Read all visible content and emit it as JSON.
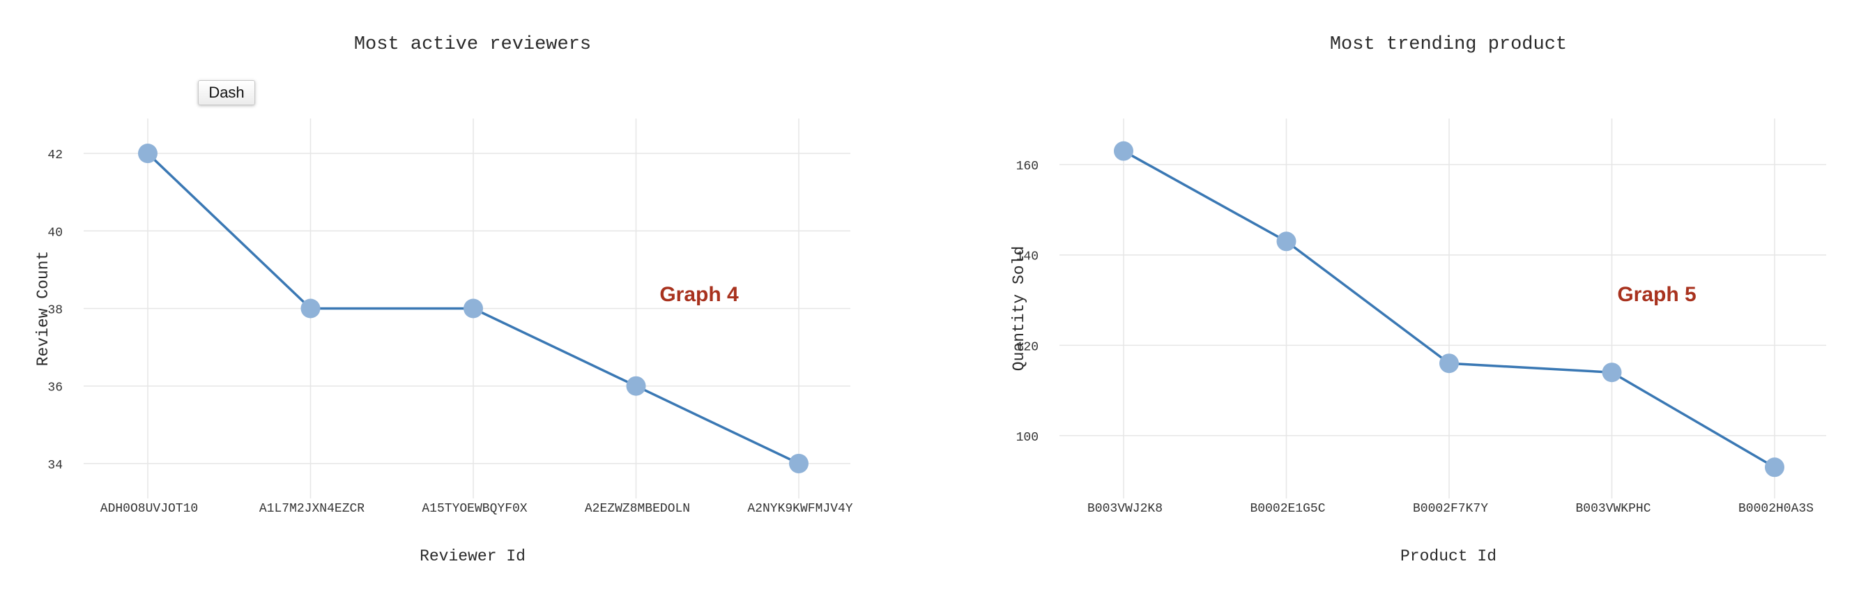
{
  "buttons": {
    "dash_label": "Dash"
  },
  "colors": {
    "line": "#3a78b4",
    "marker": "#8fb2d8",
    "annotation": "#a8321e",
    "grid": "#e6e6e6"
  },
  "chart_data": [
    {
      "type": "line",
      "title": "Most active reviewers",
      "xlabel": "Reviewer Id",
      "ylabel": "Review Count",
      "categories": [
        "ADH0O8UVJOT10",
        "A1L7M2JXN4EZCR",
        "A15TYOEWBQYF0X",
        "A2EZWZ8MBEDOLN",
        "A2NYK9KWFMJV4Y"
      ],
      "values": [
        42,
        38,
        38,
        36,
        34
      ],
      "ylim": [
        33.1,
        42.9
      ],
      "yticks": [
        34,
        36,
        38,
        40,
        42
      ],
      "grid": true,
      "annotation": "Graph 4"
    },
    {
      "type": "line",
      "title": "Most trending product",
      "xlabel": "Product Id",
      "ylabel": "Quantity Sold",
      "categories": [
        "B003VWJ2K8",
        "B0002E1G5C",
        "B0002F7K7Y",
        "B003VWKPHC",
        "B0002H0A3S"
      ],
      "values": [
        163,
        143,
        116,
        114,
        93
      ],
      "ylim": [
        86.1,
        170.2
      ],
      "yticks": [
        100,
        120,
        140,
        160
      ],
      "grid": true,
      "annotation": "Graph 5"
    }
  ]
}
